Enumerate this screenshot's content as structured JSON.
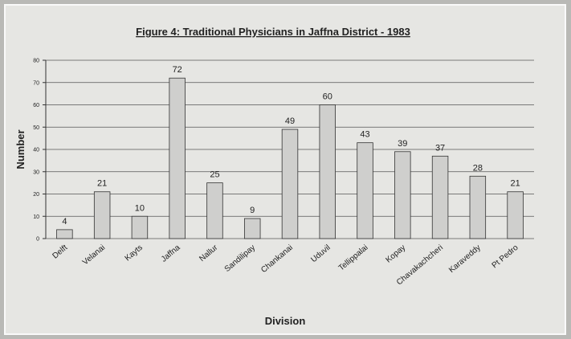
{
  "chart_data": {
    "type": "bar",
    "title": "Figure 4: Traditional Physicians in Jaffna District - 1983",
    "x_label": "Division",
    "y_label": "Number",
    "categories": [
      "Delft",
      "Velanai",
      "Kayts",
      "Jaffna",
      "Nallur",
      "Sandilipay",
      "Chankanai",
      "Uduvil",
      "Tellippalai",
      "Kopay",
      "Chavakachcheri",
      "Karaveddy",
      "Pt Pedro"
    ],
    "values": [
      4,
      21,
      10,
      72,
      25,
      9,
      49,
      60,
      43,
      39,
      37,
      28,
      21
    ],
    "color": "#cfcfcd",
    "ylim": [
      0,
      80
    ],
    "yticks": [
      0,
      10,
      20,
      30,
      40,
      50,
      60,
      70,
      80
    ],
    "grid": true
  }
}
